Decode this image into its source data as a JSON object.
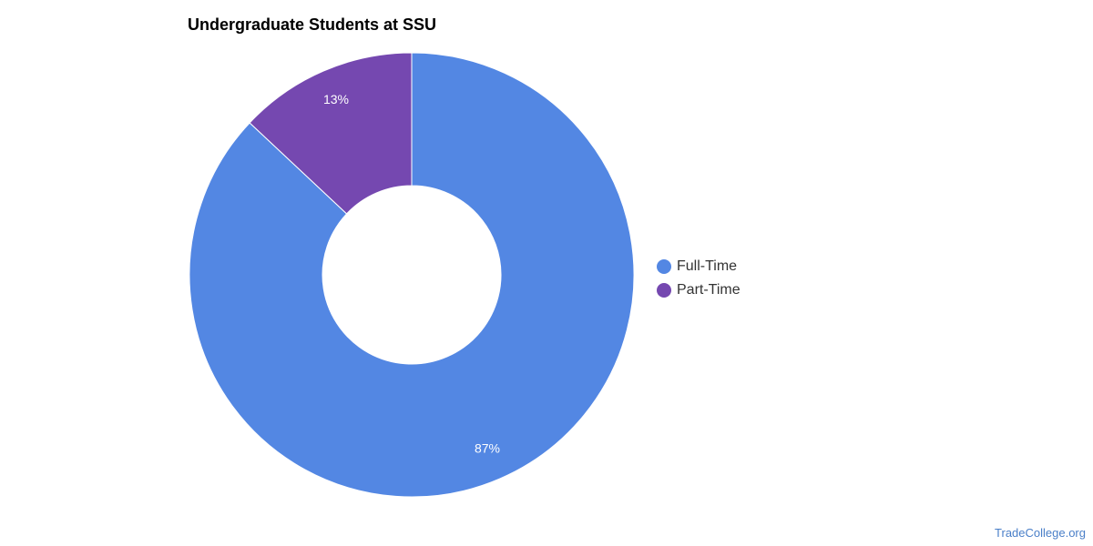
{
  "chart_data": {
    "type": "pie",
    "title": "Undergraduate Students at SSU",
    "donut": true,
    "categories": [
      "Full-Time",
      "Part-Time"
    ],
    "values": [
      87,
      13
    ],
    "data_labels": [
      "87%",
      "13%"
    ],
    "colors": [
      "#5387e3",
      "#7548b0"
    ],
    "legend": "right"
  },
  "legend": {
    "items": [
      {
        "label": "Full-Time",
        "color": "#5387e3"
      },
      {
        "label": "Part-Time",
        "color": "#7548b0"
      }
    ]
  },
  "footer": {
    "watermark": "TradeCollege.org"
  }
}
